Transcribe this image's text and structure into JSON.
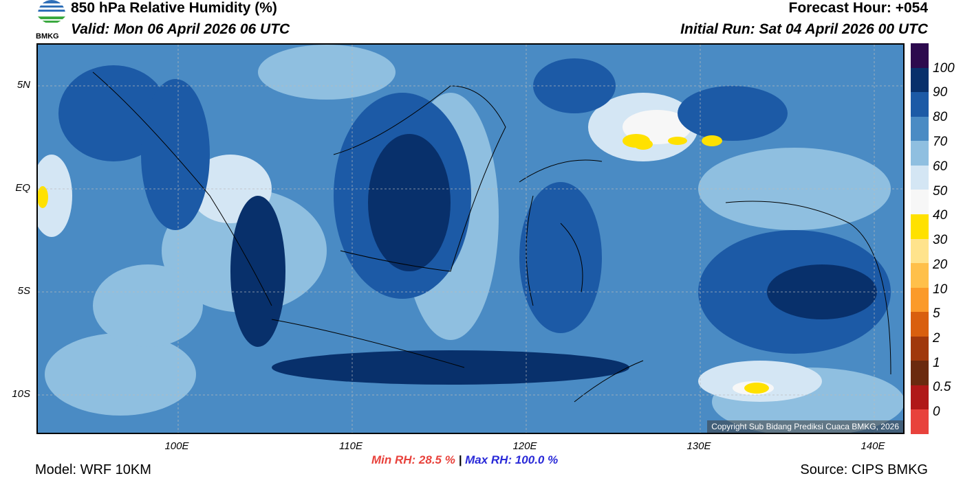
{
  "header": {
    "title": "850 hPa Relative Humidity (%)",
    "valid": "Valid: Mon 06 April 2026 06 UTC",
    "forecast_hour": "Forecast Hour: +054",
    "initial_run": "Initial Run: Sat 04 April 2026 00 UTC",
    "logo_text": "BMKG"
  },
  "map": {
    "y_ticks": [
      "5N",
      "EQ",
      "5S",
      "10S"
    ],
    "x_ticks": [
      "100E",
      "110E",
      "120E",
      "130E",
      "140E"
    ],
    "copyright": "Copyright Sub Bidang Prediksi Cuaca BMKG, 2026"
  },
  "legend": {
    "labels": [
      "100",
      "90",
      "80",
      "70",
      "60",
      "50",
      "40",
      "30",
      "20",
      "10",
      "5",
      "2",
      "1",
      "0.5",
      "0"
    ],
    "colors": [
      "#2d0a4e",
      "#08306b",
      "#1c5aa6",
      "#4a8bc4",
      "#8fbfe0",
      "#d4e6f4",
      "#f7f7f7",
      "#ffe100",
      "#ffe38c",
      "#ffc04a",
      "#fb9a29",
      "#d95f0e",
      "#a0380c",
      "#6b2a0f",
      "#b01818",
      "#e8423c"
    ]
  },
  "footer": {
    "model": "Model: WRF 10KM",
    "min_rh": "Min RH:  28.5 %",
    "separator": "|",
    "max_rh": "Max RH: 100.0 %",
    "source": "Source: CIPS BMKG"
  }
}
